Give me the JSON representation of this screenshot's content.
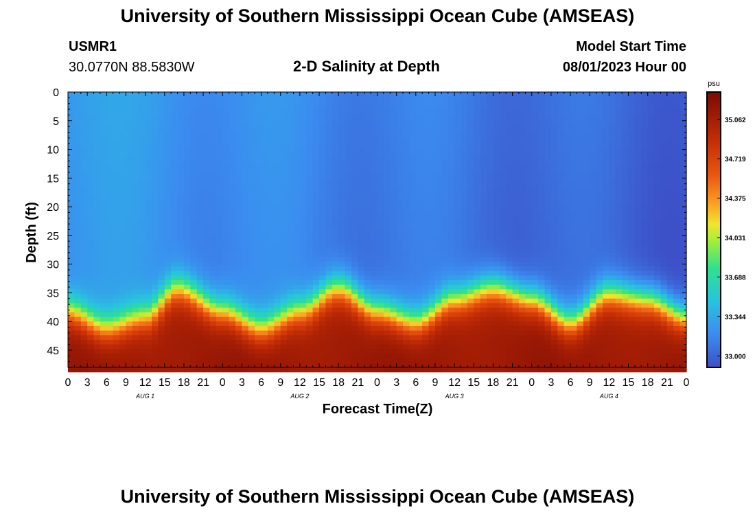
{
  "page": {
    "title": "University of Southern Mississippi Ocean Cube (AMSEAS)",
    "footer_title": "University of Southern Mississippi Ocean Cube (AMSEAS)"
  },
  "station": {
    "id": "USMR1",
    "coords": "30.0770N  88.5830W"
  },
  "model": {
    "start_label": "Model Start Time",
    "start_value": "08/01/2023 Hour 00"
  },
  "chart_data": {
    "type": "heatmap",
    "title": "2-D Salinity at Depth",
    "xlabel": "Forecast Time(Z)",
    "ylabel": "Depth (ft)",
    "xlim": [
      0,
      96
    ],
    "ylim": [
      0,
      48
    ],
    "x_tick_labels": [
      "0",
      "3",
      "6",
      "9",
      "12",
      "15",
      "18",
      "21",
      "0",
      "3",
      "6",
      "9",
      "12",
      "15",
      "18",
      "21",
      "0",
      "3",
      "6",
      "9",
      "12",
      "15",
      "18",
      "21",
      "0",
      "3",
      "6",
      "9",
      "12",
      "15",
      "18",
      "21",
      "0"
    ],
    "y_ticks": [
      0,
      5,
      10,
      15,
      20,
      25,
      30,
      35,
      40,
      45
    ],
    "day_labels": [
      {
        "label": "AUG 1",
        "hour": 12
      },
      {
        "label": "AUG 2",
        "hour": 36
      },
      {
        "label": "AUG 3",
        "hour": 60
      },
      {
        "label": "AUG 4",
        "hour": 84
      }
    ],
    "halocline_depth_ft": {
      "hours": [
        0,
        6,
        12,
        17,
        24,
        30,
        36,
        42,
        48,
        54,
        60,
        66,
        72,
        78,
        84,
        90,
        96
      ],
      "depth": [
        35,
        38,
        36,
        31,
        35,
        38,
        35,
        31,
        35,
        37,
        33,
        31,
        33,
        37,
        32,
        33,
        36
      ]
    },
    "colorbar": {
      "unit": "psu",
      "range": [
        32.9,
        35.3
      ],
      "ticks": [
        "33.000",
        "33.344",
        "33.688",
        "34.031",
        "34.375",
        "34.719",
        "35.062"
      ]
    }
  }
}
